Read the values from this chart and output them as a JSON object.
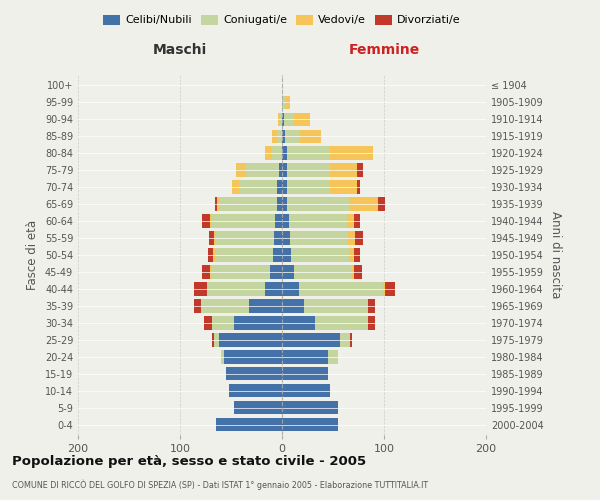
{
  "age_groups": [
    "0-4",
    "5-9",
    "10-14",
    "15-19",
    "20-24",
    "25-29",
    "30-34",
    "35-39",
    "40-44",
    "45-49",
    "50-54",
    "55-59",
    "60-64",
    "65-69",
    "70-74",
    "75-79",
    "80-84",
    "85-89",
    "90-94",
    "95-99",
    "100+"
  ],
  "birth_years": [
    "2000-2004",
    "1995-1999",
    "1990-1994",
    "1985-1989",
    "1980-1984",
    "1975-1979",
    "1970-1974",
    "1965-1969",
    "1960-1964",
    "1955-1959",
    "1950-1954",
    "1945-1949",
    "1940-1944",
    "1935-1939",
    "1930-1934",
    "1925-1929",
    "1920-1924",
    "1915-1919",
    "1910-1914",
    "1905-1909",
    "≤ 1904"
  ],
  "male": {
    "celibi": [
      65,
      47,
      52,
      55,
      57,
      62,
      47,
      32,
      17,
      12,
      9,
      8,
      7,
      5,
      5,
      3,
      0,
      0,
      0,
      0,
      0
    ],
    "coniugati": [
      0,
      0,
      0,
      0,
      3,
      5,
      22,
      47,
      57,
      57,
      57,
      57,
      62,
      57,
      37,
      32,
      10,
      5,
      2,
      0,
      0
    ],
    "vedovi": [
      0,
      0,
      0,
      0,
      0,
      0,
      0,
      0,
      0,
      2,
      2,
      2,
      2,
      2,
      7,
      10,
      7,
      5,
      2,
      0,
      0
    ],
    "divorziati": [
      0,
      0,
      0,
      0,
      0,
      2,
      7,
      7,
      12,
      7,
      5,
      5,
      7,
      2,
      0,
      0,
      0,
      0,
      0,
      0,
      0
    ]
  },
  "female": {
    "nubili": [
      55,
      55,
      47,
      45,
      45,
      57,
      32,
      22,
      17,
      12,
      9,
      8,
      7,
      5,
      5,
      5,
      5,
      3,
      2,
      0,
      0
    ],
    "coniugate": [
      0,
      0,
      0,
      0,
      10,
      10,
      52,
      62,
      82,
      57,
      57,
      57,
      57,
      62,
      42,
      42,
      42,
      15,
      10,
      3,
      0
    ],
    "vedove": [
      0,
      0,
      0,
      0,
      0,
      0,
      0,
      0,
      2,
      2,
      5,
      7,
      7,
      27,
      27,
      27,
      42,
      20,
      15,
      5,
      0
    ],
    "divorziate": [
      0,
      0,
      0,
      0,
      0,
      2,
      7,
      7,
      10,
      7,
      5,
      7,
      5,
      7,
      2,
      5,
      0,
      0,
      0,
      0,
      0
    ]
  },
  "colors": {
    "celibi": "#4472a8",
    "coniugati": "#c5d5a0",
    "vedovi": "#f5c55a",
    "divorziati": "#c0392b"
  },
  "title": "Popolazione per età, sesso e stato civile - 2005",
  "subtitle": "COMUNE DI RICCÒ DEL GOLFO DI SPEZIA (SP) - Dati ISTAT 1° gennaio 2005 - Elaborazione TUTTITALIA.IT",
  "xlabel_left": "Maschi",
  "xlabel_right": "Femmine",
  "ylabel_left": "Fasce di età",
  "ylabel_right": "Anni di nascita",
  "xlim": 200,
  "bg_color": "#f0f0eb"
}
